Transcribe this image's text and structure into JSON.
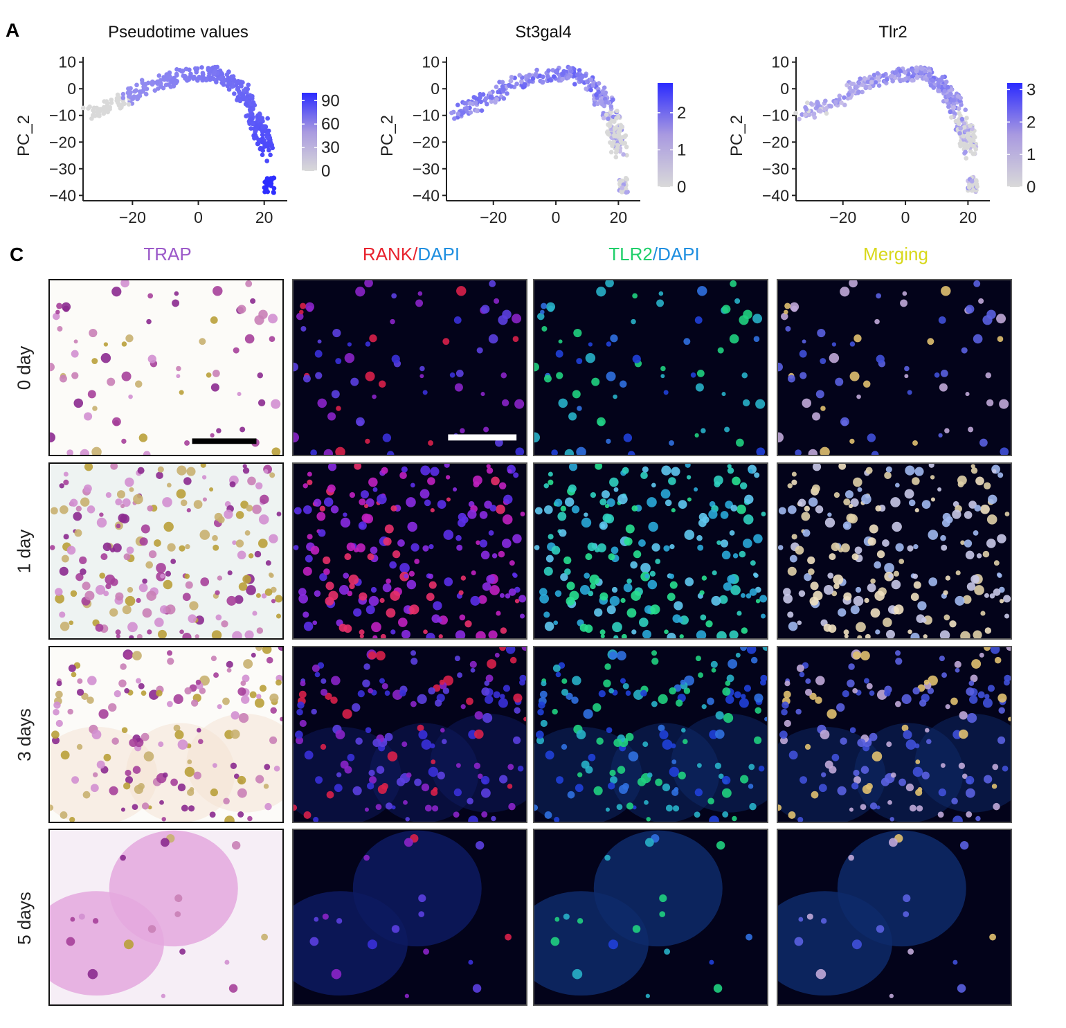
{
  "panel_labels": {
    "a": "A",
    "c": "C"
  },
  "chart_data": [
    {
      "type": "scatter",
      "title": "Pseudotime values",
      "ylabel": "PC_2",
      "xlabel": "",
      "xticks": [
        -20,
        0,
        20
      ],
      "yticks": [
        10,
        0,
        -10,
        -20,
        -30,
        -40
      ],
      "xlim": [
        -35,
        27
      ],
      "ylim": [
        -42,
        12
      ],
      "colorbar": {
        "ticks": [
          90,
          60,
          30,
          0
        ],
        "min": 0,
        "max": 100,
        "low_color": "#d9d9d9",
        "high_color": "#2b2bff"
      },
      "trajectory": [
        [
          -33,
          -9
        ],
        [
          -25,
          -6
        ],
        [
          -15,
          1
        ],
        [
          -5,
          5
        ],
        [
          5,
          6
        ],
        [
          12,
          1
        ],
        [
          16,
          -6
        ],
        [
          19,
          -15
        ],
        [
          20,
          -20
        ],
        [
          21,
          -35
        ]
      ],
      "value_trend": [
        0,
        40,
        100
      ]
    },
    {
      "type": "scatter",
      "title": "St3gal4",
      "ylabel": "PC_2",
      "xlabel": "",
      "xticks": [
        -20,
        0,
        20
      ],
      "yticks": [
        10,
        0,
        -10,
        -20,
        -30,
        -40
      ],
      "xlim": [
        -35,
        27
      ],
      "ylim": [
        -42,
        12
      ],
      "colorbar": {
        "ticks": [
          2,
          1,
          0
        ],
        "min": 0,
        "max": 2.8,
        "low_color": "#d9d9d9",
        "high_color": "#2b2bff"
      },
      "trajectory": [
        [
          -33,
          -9
        ],
        [
          -25,
          -6
        ],
        [
          -15,
          1
        ],
        [
          -5,
          5
        ],
        [
          5,
          6
        ],
        [
          12,
          1
        ],
        [
          16,
          -6
        ],
        [
          19,
          -15
        ],
        [
          20,
          -20
        ],
        [
          21,
          -35
        ]
      ],
      "value_trend": [
        1.0,
        1.3,
        0.1
      ]
    },
    {
      "type": "scatter",
      "title": "Tlr2",
      "ylabel": "PC_2",
      "xlabel": "",
      "xticks": [
        -20,
        0,
        20
      ],
      "yticks": [
        10,
        0,
        -10,
        -20,
        -30,
        -40
      ],
      "xlim": [
        -35,
        27
      ],
      "ylim": [
        -42,
        12
      ],
      "colorbar": {
        "ticks": [
          3,
          2,
          1,
          0
        ],
        "min": 0,
        "max": 3.2,
        "low_color": "#d9d9d9",
        "high_color": "#2b2bff"
      },
      "trajectory": [
        [
          -33,
          -9
        ],
        [
          -25,
          -6
        ],
        [
          -15,
          1
        ],
        [
          -5,
          5
        ],
        [
          5,
          6
        ],
        [
          12,
          1
        ],
        [
          16,
          -6
        ],
        [
          19,
          -15
        ],
        [
          20,
          -20
        ],
        [
          21,
          -35
        ]
      ],
      "value_trend": [
        0.5,
        1.2,
        0.4
      ]
    }
  ],
  "micrograph": {
    "columns": [
      {
        "parts": [
          {
            "text": "TRAP",
            "color": "#9b59c9"
          }
        ]
      },
      {
        "parts": [
          {
            "text": "RANK",
            "color": "#e8232e"
          },
          {
            "text": "/",
            "color": "#e8232e"
          },
          {
            "text": "DAPI",
            "color": "#1f8fe0"
          }
        ]
      },
      {
        "parts": [
          {
            "text": "TLR2",
            "color": "#1fcf6a"
          },
          {
            "text": "/",
            "color": "#1f8fe0"
          },
          {
            "text": "DAPI",
            "color": "#1f8fe0"
          }
        ]
      },
      {
        "parts": [
          {
            "text": "Merging",
            "color": "#d8d81a"
          }
        ]
      }
    ],
    "rows": [
      "0 day",
      "1 day",
      "3 days",
      "5 days"
    ]
  }
}
